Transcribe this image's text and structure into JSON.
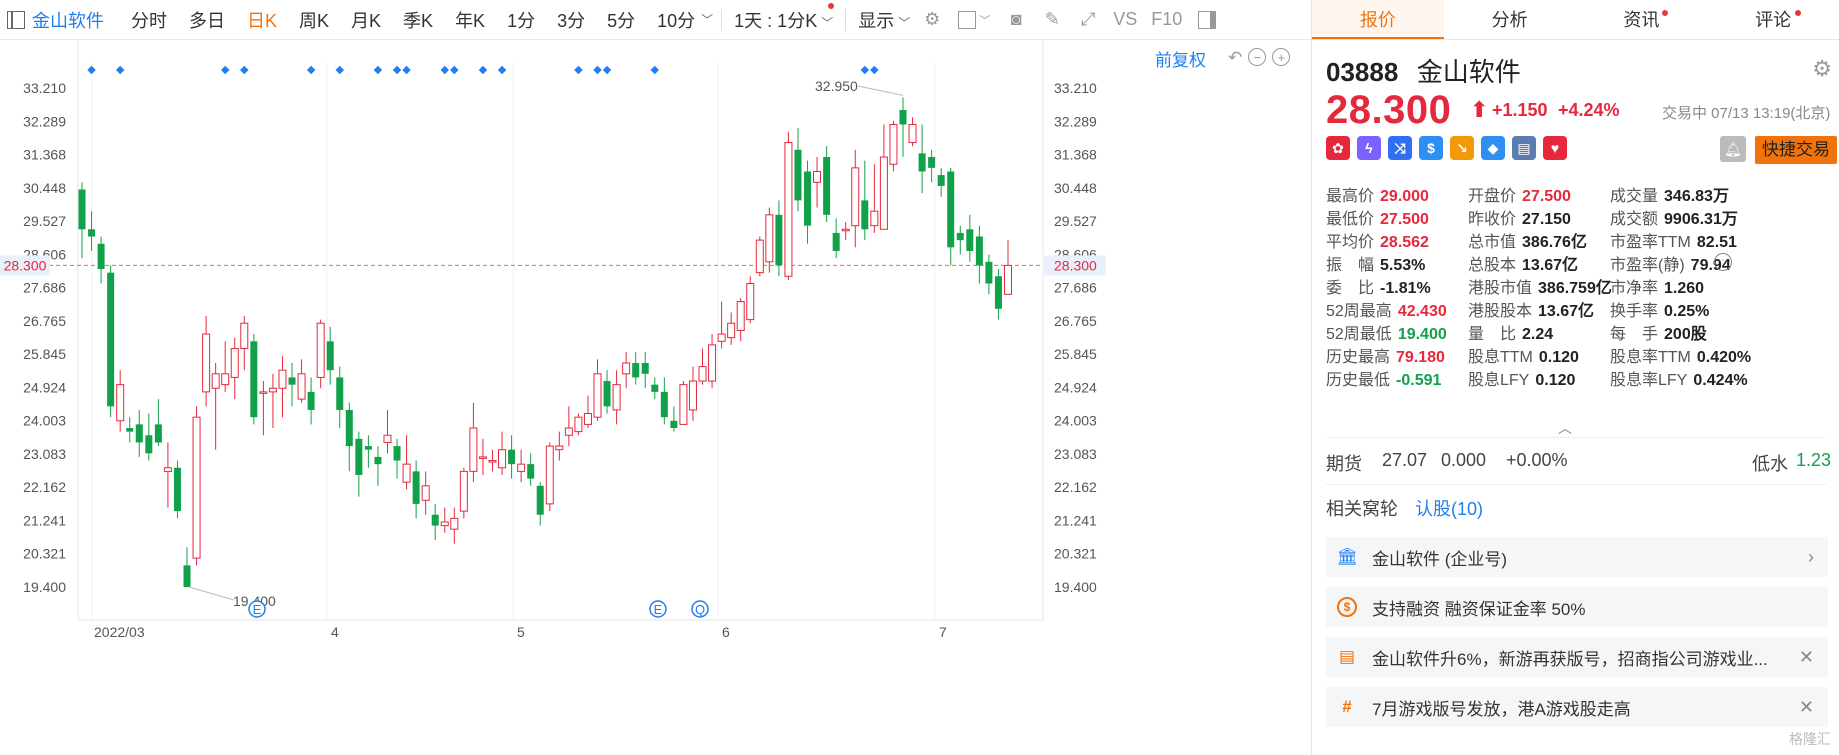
{
  "toolbar": {
    "stock_name": "金山软件",
    "periods": [
      "分时",
      "多日",
      "日K",
      "周K",
      "月K",
      "季K",
      "年K",
      "1分",
      "3分",
      "5分",
      "10分"
    ],
    "active_period": "日K",
    "range_select": "1天 : 1分K",
    "display_select": "显示",
    "icons": [
      "settings-icon",
      "checkbox-icon",
      "camera-icon",
      "pen-icon",
      "fullscreen-icon",
      "vs-icon",
      "f10-icon",
      "sidebar-icon"
    ],
    "vs_label": "VS",
    "f10_label": "F10"
  },
  "chart": {
    "adjust_label": "前复权",
    "current_price_label": "28.300",
    "high_label": "32.950",
    "low_label": "19.400",
    "event_markers": [
      "E",
      "E",
      "Q"
    ]
  },
  "chart_data": {
    "type": "candlestick",
    "ylim": [
      18.9,
      33.8
    ],
    "y_ticks": [
      "33.210",
      "32.289",
      "31.368",
      "30.448",
      "29.527",
      "28.606",
      "27.686",
      "26.765",
      "25.845",
      "24.924",
      "24.003",
      "23.083",
      "22.162",
      "21.241",
      "20.321",
      "19.400"
    ],
    "x_ticks": [
      "2022/03",
      "4",
      "5",
      "6",
      "7"
    ],
    "current_price": 28.3,
    "candles": [
      [
        30.4,
        29.3,
        30.6,
        28.5
      ],
      [
        29.3,
        29.1,
        29.8,
        28.7
      ],
      [
        28.9,
        28.2,
        29.1,
        27.8
      ],
      [
        28.1,
        24.4,
        28.3,
        24.1
      ],
      [
        24.0,
        25.0,
        25.4,
        23.7
      ],
      [
        23.8,
        23.7,
        24.1,
        23.4
      ],
      [
        23.9,
        23.4,
        24.3,
        23.0
      ],
      [
        23.6,
        23.1,
        24.2,
        22.9
      ],
      [
        23.9,
        23.4,
        24.6,
        23.3
      ],
      [
        22.6,
        22.7,
        23.4,
        21.6
      ],
      [
        22.7,
        21.5,
        22.9,
        21.3
      ],
      [
        20.0,
        19.4,
        20.5,
        19.4
      ],
      [
        20.2,
        24.1,
        24.4,
        20.0
      ],
      [
        24.8,
        26.4,
        26.9,
        24.4
      ],
      [
        24.9,
        25.3,
        25.6,
        23.2
      ],
      [
        25.0,
        25.3,
        26.2,
        24.8
      ],
      [
        25.2,
        26.0,
        26.3,
        24.6
      ],
      [
        26.0,
        26.7,
        26.9,
        25.4
      ],
      [
        26.2,
        24.1,
        26.4,
        23.9
      ],
      [
        24.8,
        24.8,
        25.1,
        23.6
      ],
      [
        24.8,
        24.9,
        25.3,
        23.8
      ],
      [
        24.9,
        25.4,
        25.8,
        24.1
      ],
      [
        25.2,
        25.0,
        25.6,
        24.4
      ],
      [
        24.6,
        25.3,
        25.7,
        24.5
      ],
      [
        24.8,
        24.3,
        25.2,
        23.9
      ],
      [
        25.2,
        26.7,
        26.8,
        24.9
      ],
      [
        26.2,
        25.4,
        26.6,
        25.0
      ],
      [
        25.2,
        24.3,
        25.5,
        23.8
      ],
      [
        24.3,
        23.3,
        24.5,
        22.6
      ],
      [
        23.5,
        22.5,
        23.7,
        21.9
      ],
      [
        23.3,
        23.2,
        23.6,
        22.7
      ],
      [
        23.0,
        22.8,
        23.3,
        22.2
      ],
      [
        23.4,
        23.6,
        24.3,
        23.1
      ],
      [
        23.3,
        22.9,
        23.5,
        22.4
      ],
      [
        22.3,
        22.8,
        23.6,
        22.1
      ],
      [
        22.6,
        21.7,
        22.9,
        21.3
      ],
      [
        21.8,
        22.2,
        22.6,
        21.4
      ],
      [
        21.4,
        21.1,
        21.7,
        20.7
      ],
      [
        21.1,
        21.2,
        21.6,
        20.9
      ],
      [
        21.0,
        21.3,
        21.6,
        20.6
      ],
      [
        21.5,
        22.6,
        22.7,
        21.3
      ],
      [
        22.6,
        23.8,
        24.5,
        22.3
      ],
      [
        23.0,
        23.0,
        23.5,
        22.5
      ],
      [
        22.9,
        22.9,
        23.2,
        22.6
      ],
      [
        22.7,
        23.2,
        23.7,
        22.5
      ],
      [
        23.2,
        22.8,
        23.6,
        22.4
      ],
      [
        22.6,
        22.8,
        23.2,
        22.3
      ],
      [
        22.8,
        22.4,
        23.1,
        22.2
      ],
      [
        22.2,
        21.4,
        22.3,
        21.1
      ],
      [
        21.7,
        23.3,
        23.4,
        21.5
      ],
      [
        23.2,
        23.3,
        23.7,
        22.9
      ],
      [
        23.6,
        23.8,
        24.4,
        23.3
      ],
      [
        23.7,
        24.1,
        24.2,
        23.6
      ],
      [
        23.9,
        24.2,
        24.7,
        23.8
      ],
      [
        24.1,
        25.3,
        25.7,
        24.0
      ],
      [
        25.1,
        24.4,
        25.4,
        24.2
      ],
      [
        24.3,
        25.0,
        25.4,
        23.9
      ],
      [
        25.3,
        25.6,
        25.9,
        24.9
      ],
      [
        25.6,
        25.2,
        25.9,
        25.0
      ],
      [
        25.6,
        25.3,
        25.9,
        24.9
      ],
      [
        25.0,
        24.8,
        25.2,
        24.6
      ],
      [
        24.8,
        24.1,
        25.2,
        23.9
      ],
      [
        24.0,
        23.8,
        24.4,
        23.7
      ],
      [
        23.9,
        25.0,
        25.1,
        23.9
      ],
      [
        24.3,
        25.1,
        25.5,
        24.0
      ],
      [
        25.1,
        25.5,
        26.0,
        25.0
      ],
      [
        25.1,
        26.1,
        26.4,
        24.9
      ],
      [
        26.2,
        26.4,
        27.3,
        26.0
      ],
      [
        26.3,
        26.7,
        27.0,
        26.1
      ],
      [
        26.5,
        27.3,
        27.4,
        26.2
      ],
      [
        26.8,
        27.8,
        28.0,
        26.7
      ],
      [
        28.1,
        29.0,
        29.1,
        28.0
      ],
      [
        28.4,
        29.7,
        29.9,
        28.1
      ],
      [
        29.7,
        28.3,
        30.1,
        28.0
      ],
      [
        28.0,
        31.7,
        32.0,
        27.9
      ],
      [
        31.5,
        30.1,
        32.1,
        29.8
      ],
      [
        30.9,
        29.4,
        31.2,
        28.9
      ],
      [
        30.6,
        30.9,
        31.3,
        29.9
      ],
      [
        31.3,
        29.7,
        31.6,
        29.5
      ],
      [
        29.2,
        28.7,
        29.6,
        28.5
      ],
      [
        29.3,
        29.3,
        29.5,
        29.0
      ],
      [
        29.4,
        31.0,
        31.5,
        28.8
      ],
      [
        30.1,
        29.3,
        31.2,
        29.0
      ],
      [
        29.4,
        29.8,
        31.1,
        29.2
      ],
      [
        29.3,
        31.3,
        32.2,
        29.3
      ],
      [
        31.1,
        32.2,
        32.3,
        30.9
      ],
      [
        32.6,
        32.2,
        32.95,
        31.3
      ],
      [
        31.7,
        32.2,
        32.4,
        31.6
      ],
      [
        31.4,
        30.9,
        32.2,
        30.3
      ],
      [
        31.3,
        31.0,
        31.5,
        30.6
      ],
      [
        30.8,
        30.5,
        31.0,
        30.2
      ],
      [
        30.9,
        28.8,
        31.0,
        28.3
      ],
      [
        29.2,
        29.0,
        29.4,
        28.6
      ],
      [
        29.3,
        28.7,
        29.7,
        28.4
      ],
      [
        29.1,
        28.3,
        29.4,
        27.8
      ],
      [
        28.4,
        27.8,
        28.6,
        27.5
      ],
      [
        28.0,
        27.1,
        28.2,
        26.8
      ],
      [
        27.5,
        28.3,
        29.0,
        27.5
      ]
    ],
    "event_dot_candles": [
      1,
      4,
      15,
      17,
      24,
      27,
      31,
      33,
      34,
      38,
      39,
      42,
      44,
      52,
      54,
      55,
      60,
      82,
      83
    ]
  },
  "panel": {
    "tabs": [
      {
        "label": "报价",
        "dot": false
      },
      {
        "label": "分析",
        "dot": false
      },
      {
        "label": "资讯",
        "dot": true
      },
      {
        "label": "评论",
        "dot": true
      }
    ],
    "code": "03888",
    "name": "金山软件",
    "price": "28.300",
    "change": "+1.150",
    "change_pct": "+4.24%",
    "status": "交易中 07/13 13:19(北京)",
    "badges": [
      {
        "icon": "flower-icon",
        "color": "#e5283b",
        "text": "✿"
      },
      {
        "icon": "lightning-icon",
        "color": "#7b61ff",
        "text": "ϟ"
      },
      {
        "icon": "shuffle-icon",
        "color": "#2f6ff0",
        "text": "⤨"
      },
      {
        "icon": "dollar-icon",
        "color": "#2f8ff0",
        "text": "$"
      },
      {
        "icon": "trend-icon",
        "color": "#f29a0c",
        "text": "↘"
      },
      {
        "icon": "tag-icon",
        "color": "#2f8ff0",
        "text": "◆"
      },
      {
        "icon": "doc-icon",
        "color": "#5b7cb0",
        "text": "▤"
      },
      {
        "icon": "heart-icon",
        "color": "#e5283b",
        "text": "♥"
      }
    ],
    "quick_trade": "快捷交易",
    "stats": [
      [
        {
          "label": "最高价",
          "value": "29.000",
          "color": "red"
        },
        {
          "label": "开盘价",
          "value": "27.500",
          "color": "red"
        },
        {
          "label": "成交量",
          "value": "346.83万",
          "color": "dark"
        }
      ],
      [
        {
          "label": "最低价",
          "value": "27.500",
          "color": "red"
        },
        {
          "label": "昨收价",
          "value": "27.150",
          "color": "dark"
        },
        {
          "label": "成交额",
          "value": "9906.31万",
          "color": "dark"
        }
      ],
      [
        {
          "label": "平均价",
          "value": "28.562",
          "color": "red"
        },
        {
          "label": "总市值",
          "value": "386.76亿",
          "color": "dark"
        },
        {
          "label": "市盈率TTM",
          "value": "82.51",
          "color": "dark"
        }
      ],
      [
        {
          "label": "振　幅",
          "value": "5.53%",
          "color": "dark"
        },
        {
          "label": "总股本",
          "value": "13.67亿",
          "color": "dark"
        },
        {
          "label": "市盈率(静)",
          "value": "79.94",
          "color": "dark"
        }
      ],
      [
        {
          "label": "委　比",
          "value": "-1.81%",
          "color": "dark"
        },
        {
          "label": "港股市值",
          "value": "386.759亿",
          "color": "dark"
        },
        {
          "label": "市净率",
          "value": "1.260",
          "color": "dark"
        }
      ],
      [
        {
          "label": "52周最高",
          "value": "42.430",
          "color": "red"
        },
        {
          "label": "港股股本",
          "value": "13.67亿",
          "color": "dark"
        },
        {
          "label": "换手率",
          "value": "0.25%",
          "color": "dark"
        }
      ],
      [
        {
          "label": "52周最低",
          "value": "19.400",
          "color": "green"
        },
        {
          "label": "量　比",
          "value": "2.24",
          "color": "dark"
        },
        {
          "label": "每　手",
          "value": "200股",
          "color": "dark"
        }
      ],
      [
        {
          "label": "历史最高",
          "value": "79.180",
          "color": "red"
        },
        {
          "label": "股息TTM",
          "value": "0.120",
          "color": "dark"
        },
        {
          "label": "股息率TTM",
          "value": "0.420%",
          "color": "dark"
        }
      ],
      [
        {
          "label": "历史最低",
          "value": "-0.591",
          "color": "green"
        },
        {
          "label": "股息LFY",
          "value": "0.120",
          "color": "dark"
        },
        {
          "label": "股息率LFY",
          "value": "0.424%",
          "color": "dark"
        }
      ]
    ],
    "futures": {
      "label": "期货",
      "price": "27.07",
      "change": "0.000",
      "pct": "+0.00%",
      "water_label": "低水",
      "water_value": "1.23"
    },
    "related": {
      "label": "相关窝轮",
      "link": "认股(10)"
    },
    "cards": [
      {
        "icon": "building-icon",
        "text": "金山软件 (企业号)",
        "action": "›"
      },
      {
        "icon": "coin-icon",
        "text": "支持融资 融资保证金率 50%",
        "action": ""
      },
      {
        "icon": "news-icon",
        "text": "金山软件升6%，新游再获版号，招商指公司游戏业...",
        "action": "✕"
      },
      {
        "icon": "hash-icon",
        "text": "7月游戏版号发放，港A游戏股走高",
        "action": "✕"
      }
    ],
    "watermark": "格隆汇"
  },
  "colors": {
    "up": "#e5283b",
    "down": "#12a14b",
    "accent": "#f2720c",
    "link": "#1f7ff0"
  }
}
